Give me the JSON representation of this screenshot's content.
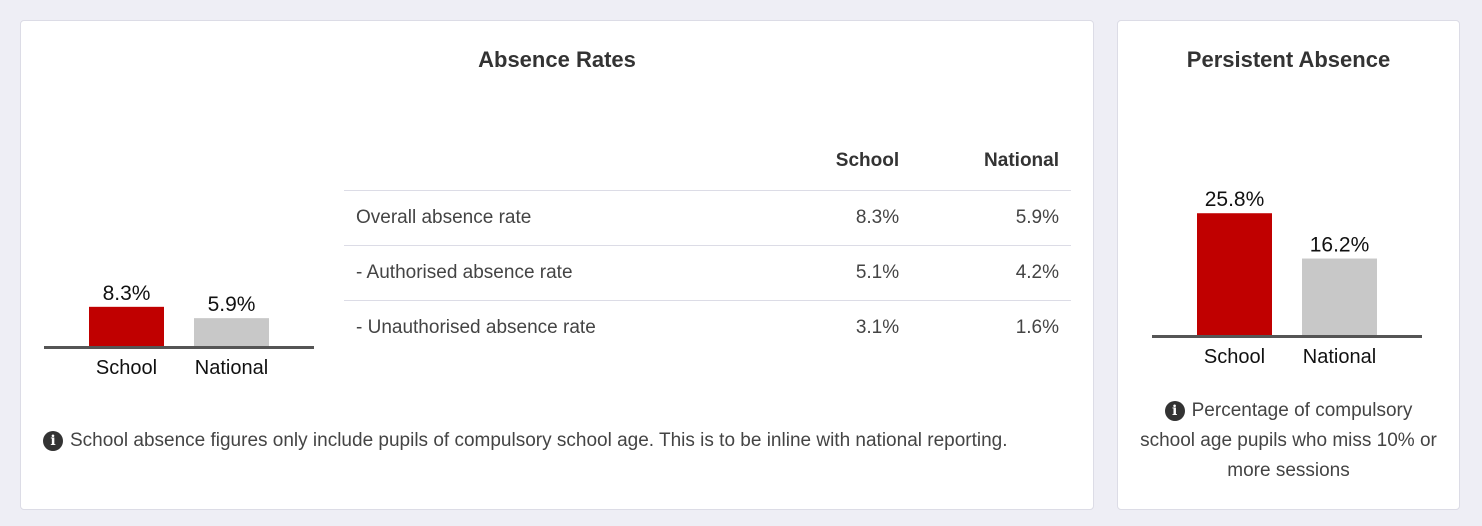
{
  "absence_rates": {
    "title": "Absence Rates",
    "table": {
      "headers": [
        "",
        "School",
        "National"
      ],
      "rows": [
        {
          "label": "Overall absence rate",
          "school": "8.3%",
          "national": "5.9%"
        },
        {
          "label": "- Authorised absence rate",
          "school": "5.1%",
          "national": "4.2%"
        },
        {
          "label": "- Unauthorised absence rate",
          "school": "3.1%",
          "national": "1.6%"
        }
      ]
    },
    "note": "School absence figures only include pupils of compulsory school age. This is to be inline with national reporting.",
    "info_icon": "info-icon"
  },
  "persistent_absence": {
    "title": "Persistent Absence",
    "note": "Percentage of compulsory school age pupils who miss 10% or more sessions",
    "info_icon": "info-icon"
  },
  "colors": {
    "school": "#c00000",
    "national": "#c8c8c8",
    "axis": "#555555"
  },
  "chart_data": [
    {
      "type": "bar",
      "categories": [
        "School",
        "National"
      ],
      "values": [
        8.3,
        5.9
      ],
      "value_labels": [
        "8.3%",
        "5.9%"
      ],
      "ylim": [
        0,
        25.8
      ]
    },
    {
      "type": "bar",
      "categories": [
        "School",
        "National"
      ],
      "values": [
        25.8,
        16.2
      ],
      "value_labels": [
        "25.8%",
        "16.2%"
      ],
      "ylim": [
        0,
        25.8
      ]
    }
  ]
}
